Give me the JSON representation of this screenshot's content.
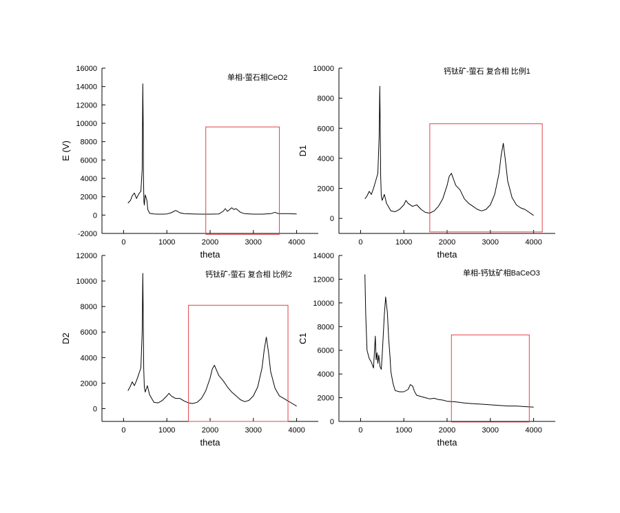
{
  "chart_data": [
    {
      "type": "line",
      "xlabel": "theta",
      "ylabel": "E (V)",
      "annotation": "单相-萤石相CeO2",
      "xlim": [
        -500,
        4500
      ],
      "ylim": [
        -2000,
        16000
      ],
      "x_ticks": [
        "0",
        "1000",
        "2000",
        "3000",
        "4000"
      ],
      "y_ticks": [
        "-2000",
        "0",
        "2000",
        "4000",
        "6000",
        "8000",
        "10000",
        "12000",
        "14000",
        "16000"
      ],
      "highlight_box": {
        "x_range": [
          1900,
          3600
        ],
        "y_range": [
          -2100,
          9600
        ]
      },
      "series": [
        {
          "x": [
            100,
            160,
            200,
            250,
            300,
            350,
            400,
            430,
            445,
            455,
            460,
            470,
            480,
            500,
            540,
            560,
            600,
            700,
            800,
            900,
            1000,
            1100,
            1200,
            1250,
            1300,
            1400,
            1600,
            1800,
            2000,
            2200,
            2300,
            2350,
            2400,
            2500,
            2550,
            2600,
            2700,
            2800,
            3000,
            3200,
            3400,
            3500,
            3550,
            3600,
            3800,
            4000
          ],
          "y": [
            1300,
            1600,
            2100,
            2400,
            1800,
            2300,
            2600,
            5000,
            14300,
            9000,
            4000,
            1500,
            1100,
            2200,
            1600,
            600,
            200,
            120,
            100,
            100,
            120,
            250,
            500,
            400,
            250,
            150,
            120,
            100,
            100,
            120,
            400,
            700,
            400,
            800,
            600,
            700,
            300,
            150,
            100,
            100,
            150,
            300,
            200,
            150,
            150,
            120
          ]
        }
      ]
    },
    {
      "type": "line",
      "xlabel": "theta",
      "ylabel": "D1",
      "annotation": "钙钛矿-萤石 复合相 比例1",
      "xlim": [
        -500,
        4500
      ],
      "ylim": [
        -1000,
        10000
      ],
      "x_ticks": [
        "0",
        "1000",
        "2000",
        "3000",
        "4000"
      ],
      "y_ticks": [
        "0",
        "2000",
        "4000",
        "6000",
        "8000",
        "10000"
      ],
      "highlight_box": {
        "x_range": [
          1600,
          4200
        ],
        "y_range": [
          -900,
          6300
        ]
      },
      "series": [
        {
          "x": [
            100,
            150,
            200,
            250,
            300,
            350,
            400,
            430,
            445,
            455,
            465,
            480,
            500,
            550,
            600,
            700,
            800,
            900,
            1000,
            1050,
            1100,
            1200,
            1300,
            1400,
            1500,
            1600,
            1700,
            1800,
            1900,
            2000,
            2050,
            2100,
            2150,
            2200,
            2300,
            2400,
            2500,
            2600,
            2700,
            2800,
            2900,
            3000,
            3100,
            3200,
            3250,
            3300,
            3350,
            3400,
            3500,
            3600,
            3700,
            3800,
            3900,
            4000
          ],
          "y": [
            1300,
            1500,
            1800,
            1600,
            2000,
            2500,
            3000,
            5500,
            8800,
            6000,
            2800,
            1500,
            1200,
            1600,
            1000,
            500,
            450,
            600,
            900,
            1200,
            1000,
            800,
            900,
            600,
            400,
            350,
            500,
            800,
            1300,
            2200,
            2800,
            3000,
            2600,
            2200,
            1900,
            1300,
            1000,
            800,
            600,
            500,
            600,
            900,
            1600,
            3000,
            4200,
            5000,
            3800,
            2500,
            1400,
            900,
            700,
            600,
            400,
            200
          ]
        }
      ]
    },
    {
      "type": "line",
      "xlabel": "theta",
      "ylabel": "D2",
      "annotation": "钙钛矿-萤石 复合相 比例2",
      "xlim": [
        -500,
        4500
      ],
      "ylim": [
        -1000,
        12000
      ],
      "x_ticks": [
        "0",
        "1000",
        "2000",
        "3000",
        "4000"
      ],
      "y_ticks": [
        "0",
        "2000",
        "4000",
        "6000",
        "8000",
        "10000",
        "12000"
      ],
      "highlight_box": {
        "x_range": [
          1500,
          3800
        ],
        "y_range": [
          -1000,
          8100
        ]
      },
      "series": [
        {
          "x": [
            100,
            150,
            200,
            250,
            300,
            350,
            400,
            430,
            445,
            455,
            465,
            480,
            500,
            550,
            600,
            700,
            800,
            900,
            1000,
            1050,
            1100,
            1200,
            1300,
            1400,
            1500,
            1600,
            1700,
            1800,
            1900,
            2000,
            2050,
            2100,
            2150,
            2200,
            2300,
            2400,
            2500,
            2600,
            2700,
            2800,
            2900,
            3000,
            3100,
            3200,
            3250,
            3300,
            3350,
            3400,
            3500,
            3600,
            3700,
            3800,
            3900,
            4000
          ],
          "y": [
            1400,
            1700,
            2100,
            1800,
            2200,
            2700,
            3200,
            6000,
            10600,
            7000,
            3200,
            1700,
            1300,
            1800,
            1100,
            500,
            450,
            650,
            1000,
            1200,
            1000,
            800,
            800,
            600,
            450,
            400,
            500,
            800,
            1400,
            2400,
            3100,
            3400,
            3000,
            2600,
            2200,
            1700,
            1300,
            1000,
            700,
            550,
            650,
            1000,
            1700,
            3200,
            4600,
            5600,
            4400,
            2900,
            1600,
            1000,
            800,
            600,
            400,
            200
          ]
        }
      ]
    },
    {
      "type": "line",
      "xlabel": "theta",
      "ylabel": "C1",
      "annotation": "单相-钙钛矿相BaCeO3",
      "xlim": [
        -500,
        4500
      ],
      "ylim": [
        0,
        14000
      ],
      "x_ticks": [
        "0",
        "1000",
        "2000",
        "3000",
        "4000"
      ],
      "y_ticks": [
        "0",
        "2000",
        "4000",
        "6000",
        "8000",
        "10000",
        "12000",
        "14000"
      ],
      "highlight_box": {
        "x_range": [
          2100,
          3900
        ],
        "y_range": [
          -50,
          7300
        ]
      },
      "series": [
        {
          "x": [
            100,
            120,
            150,
            200,
            250,
            300,
            340,
            360,
            380,
            400,
            420,
            450,
            480,
            500,
            550,
            580,
            600,
            620,
            650,
            680,
            700,
            750,
            800,
            900,
            1000,
            1100,
            1150,
            1200,
            1250,
            1300,
            1400,
            1500,
            1600,
            1700,
            1800,
            1900,
            2000,
            2200,
            2400,
            2600,
            2800,
            3000,
            3200,
            3400,
            3600,
            3800,
            4000
          ],
          "y": [
            12400,
            9000,
            6000,
            5300,
            5000,
            4500,
            7200,
            5200,
            5800,
            4900,
            5600,
            4600,
            4400,
            5600,
            9000,
            10500,
            9800,
            9200,
            7000,
            5500,
            4200,
            3200,
            2600,
            2500,
            2500,
            2700,
            3100,
            3000,
            2500,
            2200,
            2100,
            2000,
            1900,
            1950,
            1850,
            1800,
            1700,
            1650,
            1550,
            1500,
            1450,
            1400,
            1350,
            1300,
            1300,
            1250,
            1200
          ]
        }
      ]
    }
  ]
}
